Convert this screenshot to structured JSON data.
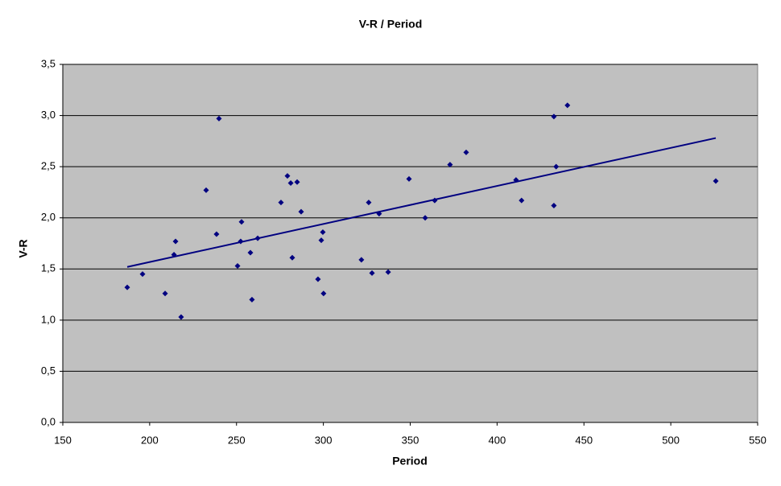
{
  "chart_data": {
    "type": "scatter",
    "title": "V-R / Period",
    "x_label": "Period",
    "y_label": "V-R",
    "x": [
      187.1,
      195.9,
      208.9,
      214.9,
      214.0,
      218.1,
      232.5,
      238.5,
      239.9,
      250.6,
      252.9,
      252.4,
      258.0,
      258.9,
      262.2,
      275.6,
      279.3,
      281.2,
      282.1,
      284.9,
      287.2,
      296.9,
      298.8,
      299.7,
      300.1,
      321.9,
      326.1,
      328.0,
      332.1,
      337.3,
      349.3,
      358.6,
      364.1,
      372.9,
      382.2,
      410.9,
      414.1,
      432.7,
      432.7,
      434.0,
      440.5,
      525.9
    ],
    "values": [
      1.32,
      1.45,
      1.26,
      1.77,
      1.64,
      1.03,
      2.27,
      1.84,
      2.97,
      1.53,
      1.96,
      1.77,
      1.66,
      1.2,
      1.8,
      2.15,
      2.41,
      2.34,
      1.61,
      2.35,
      2.06,
      1.4,
      1.78,
      1.86,
      1.26,
      1.59,
      2.15,
      1.46,
      2.04,
      1.47,
      2.38,
      2.0,
      2.17,
      2.52,
      2.64,
      2.37,
      2.17,
      2.99,
      2.12,
      2.5,
      3.1,
      2.36
    ],
    "color": "#000080",
    "trendline": {
      "x": [
        187.1,
        525.9
      ],
      "y": [
        1.52,
        2.78
      ],
      "color": "#000080"
    },
    "xlim": [
      150,
      550
    ],
    "xticks": [
      150,
      200,
      250,
      300,
      350,
      400,
      450,
      500,
      550
    ],
    "ylim": [
      0,
      3.5
    ],
    "yticks": [
      {
        "value": 0,
        "label": "0,0"
      },
      {
        "value": 0.5,
        "label": "0,5"
      },
      {
        "value": 1,
        "label": "1,0"
      },
      {
        "value": 1.5,
        "label": "1,5"
      },
      {
        "value": 2,
        "label": "2,0"
      },
      {
        "value": 2.5,
        "label": "2,5"
      },
      {
        "value": 3,
        "label": "3,0"
      },
      {
        "value": 3.5,
        "label": "3,5"
      }
    ],
    "grid": true,
    "plot_background": "#c0c0c0"
  }
}
